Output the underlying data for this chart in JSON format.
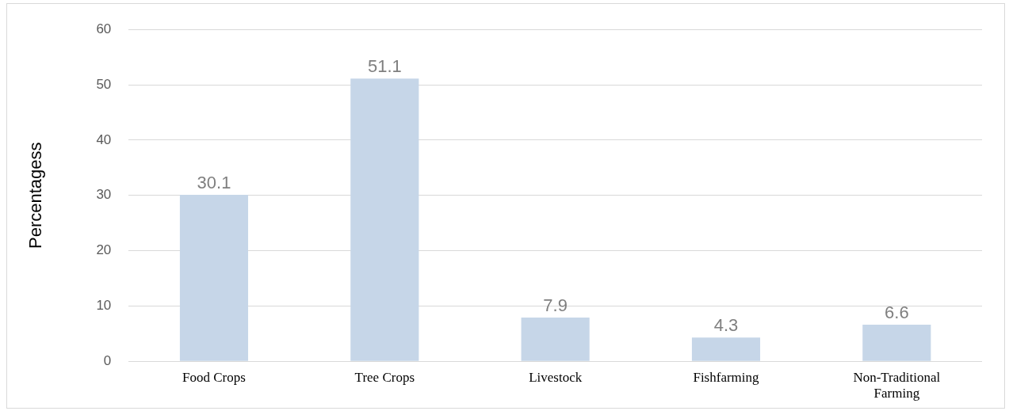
{
  "chart_data": {
    "type": "bar",
    "ylabel": "Percentagess",
    "categories": [
      "Food Crops",
      "Tree Crops",
      "Livestock",
      "Fishfarming",
      "Non-Traditional Farming"
    ],
    "values": [
      30.1,
      51.1,
      7.9,
      4.3,
      6.6
    ],
    "color": "#c6d6e8",
    "ylim": [
      0,
      60
    ],
    "yticks": [
      0,
      10,
      20,
      30,
      40,
      50,
      60
    ],
    "grid": "y",
    "data_labels": true,
    "legend": false
  }
}
